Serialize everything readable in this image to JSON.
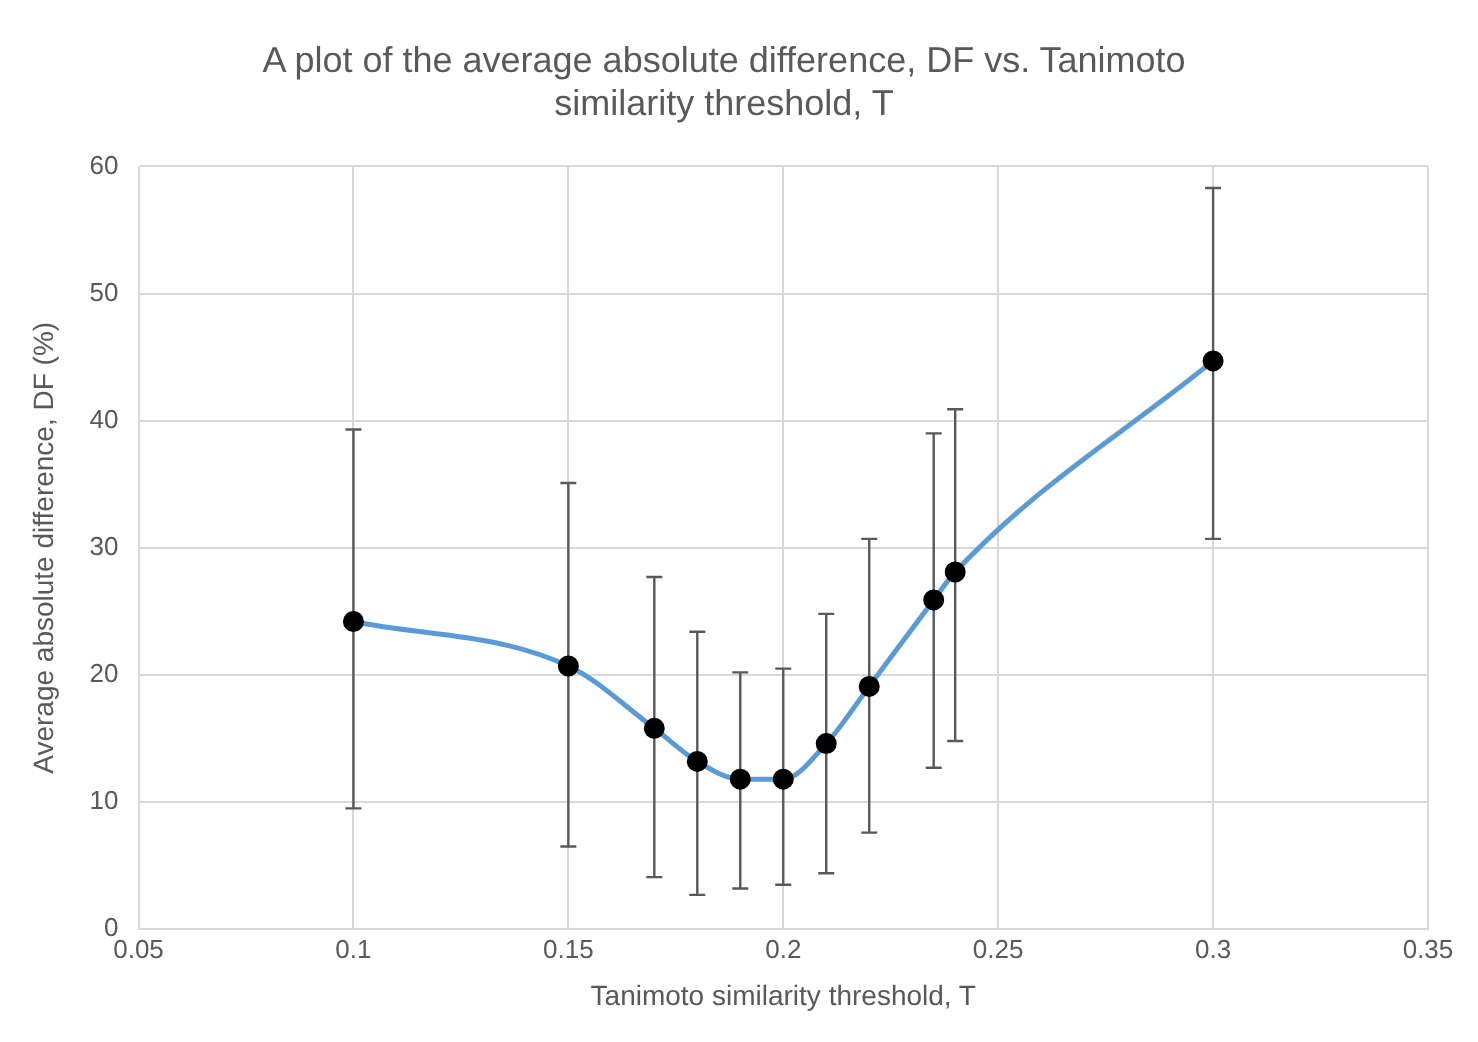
{
  "chart_data": {
    "type": "line",
    "title": "A plot of the average absolute difference, DF vs. Tanimoto similarity threshold, T",
    "xlabel": "Tanimoto similarity threshold, T",
    "ylabel": "Average absolute difference, DF (%)",
    "x": [
      0.1,
      0.15,
      0.17,
      0.18,
      0.19,
      0.2,
      0.21,
      0.22,
      0.235,
      0.24,
      0.3
    ],
    "series": [
      {
        "color": "#5b9bd5",
        "values": [
          24.2,
          20.7,
          15.8,
          13.2,
          11.8,
          11.8,
          14.6,
          19.1,
          25.9,
          28.1,
          44.7
        ],
        "errors": [
          [
            9.5,
            39.3
          ],
          [
            6.5,
            35.1
          ],
          [
            4.1,
            27.7
          ],
          [
            2.7,
            23.4
          ],
          [
            3.2,
            20.2
          ],
          [
            3.5,
            20.5
          ],
          [
            4.4,
            24.8
          ],
          [
            7.6,
            30.7
          ],
          [
            12.7,
            39.0
          ],
          [
            14.8,
            40.9
          ],
          [
            30.7,
            58.3
          ]
        ]
      }
    ],
    "xlim": [
      0.05,
      0.35
    ],
    "xticks": [
      0.05,
      0.1,
      0.15,
      0.2,
      0.25,
      0.3,
      0.35
    ],
    "ylim": [
      0,
      60
    ],
    "yticks": [
      0,
      10,
      20,
      30,
      40,
      50,
      60
    ],
    "grid": true,
    "legend": false,
    "marker": "circle",
    "line_style": "solid"
  }
}
